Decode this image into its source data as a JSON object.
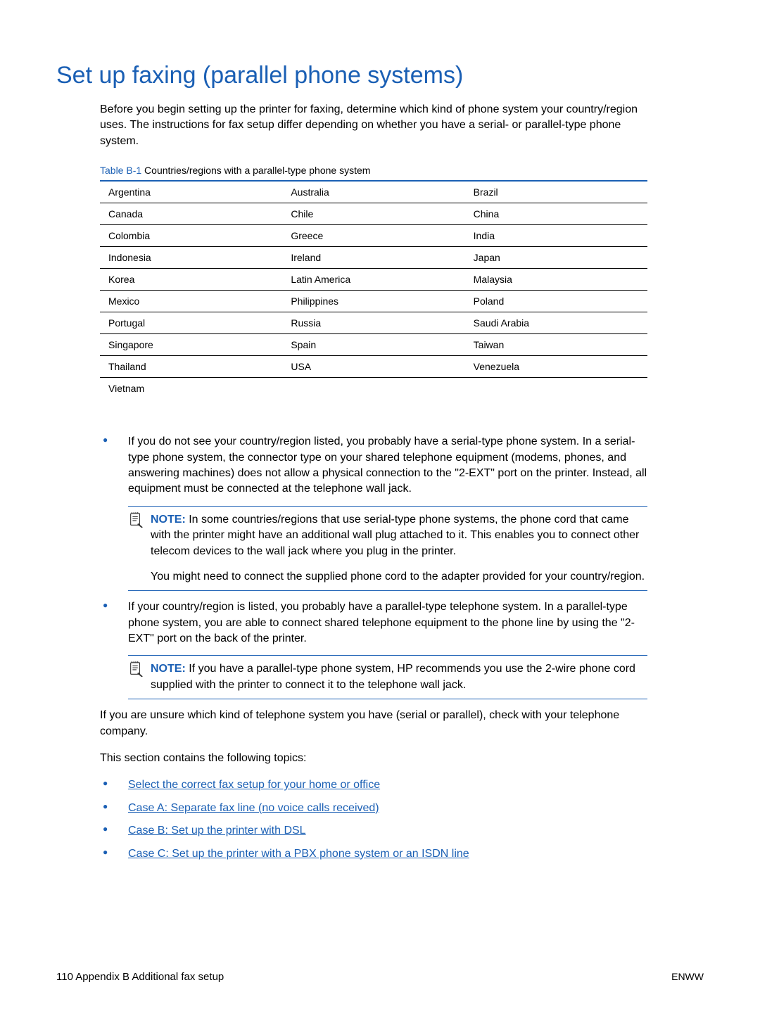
{
  "colors": {
    "primary": "#1a5fb4",
    "text": "#000000",
    "background": "#ffffff"
  },
  "title": "Set up faxing (parallel phone systems)",
  "intro": "Before you begin setting up the printer for faxing, determine which kind of phone system your country/region uses. The instructions for fax setup differ depending on whether you have a serial- or parallel-type phone system.",
  "table": {
    "label": "Table B-1",
    "caption": "Countries/regions with a parallel-type phone system",
    "rows": [
      [
        "Argentina",
        "Australia",
        "Brazil"
      ],
      [
        "Canada",
        "Chile",
        "China"
      ],
      [
        "Colombia",
        "Greece",
        "India"
      ],
      [
        "Indonesia",
        "Ireland",
        "Japan"
      ],
      [
        "Korea",
        "Latin America",
        "Malaysia"
      ],
      [
        "Mexico",
        "Philippines",
        "Poland"
      ],
      [
        "Portugal",
        "Russia",
        "Saudi Arabia"
      ],
      [
        "Singapore",
        "Spain",
        "Taiwan"
      ],
      [
        "Thailand",
        "USA",
        "Venezuela"
      ],
      [
        "Vietnam",
        "",
        ""
      ]
    ]
  },
  "bullets": {
    "item1": "If you do not see your country/region listed, you probably have a serial-type phone system. In a serial-type phone system, the connector type on your shared telephone equipment (modems, phones, and answering machines) does not allow a physical connection to the \"2-EXT\" port on the printer. Instead, all equipment must be connected at the telephone wall jack.",
    "note1": {
      "label": "NOTE:",
      "p1": "In some countries/regions that use serial-type phone systems, the phone cord that came with the printer might have an additional wall plug attached to it. This enables you to connect other telecom devices to the wall jack where you plug in the printer.",
      "p2": "You might need to connect the supplied phone cord to the adapter provided for your country/region."
    },
    "item2": "If your country/region is listed, you probably have a parallel-type telephone system. In a parallel-type phone system, you are able to connect shared telephone equipment to the phone line by using the \"2-EXT\" port on the back of the printer.",
    "note2": {
      "label": "NOTE:",
      "p1": "If you have a parallel-type phone system, HP recommends you use the 2-wire phone cord supplied with the printer to connect it to the telephone wall jack."
    }
  },
  "unsure": "If you are unsure which kind of telephone system you have (serial or parallel), check with your telephone company.",
  "section_intro": "This section contains the following topics:",
  "topics": {
    "t1": "Select the correct fax setup for your home or office",
    "t2": "Case A: Separate fax line (no voice calls received)",
    "t3": "Case B: Set up the printer with DSL",
    "t4": "Case C: Set up the printer with a PBX phone system or an ISDN line"
  },
  "footer": {
    "page": "110",
    "appendix": "Appendix B   Additional fax setup",
    "right": "ENWW"
  }
}
